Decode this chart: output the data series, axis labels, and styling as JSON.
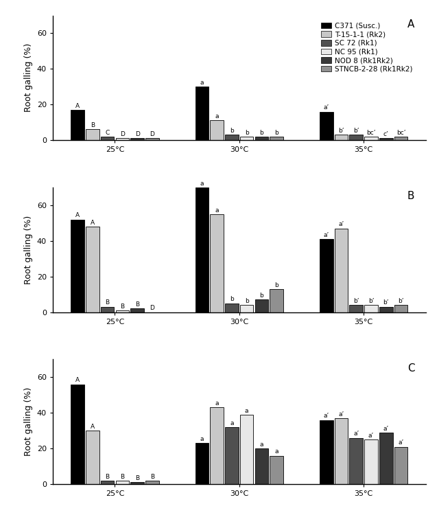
{
  "panels": [
    "A",
    "B",
    "C"
  ],
  "temperatures": [
    "25°C",
    "30°C",
    "35°C"
  ],
  "cultivars": [
    "C371 (Susc.)",
    "T-15-1-1 (Rk2)",
    "SC 72 (Rk1)",
    "NC 95 (Rk1)",
    "NOD 8 (Rk1Rk2)",
    "STNCB-2-28 (Rk1Rk2)"
  ],
  "colors": [
    "#000000",
    "#c8c8c8",
    "#505050",
    "#e8e8e8",
    "#383838",
    "#909090"
  ],
  "data": [
    [
      [
        17,
        6,
        2,
        1,
        1,
        1
      ],
      [
        30,
        11,
        3,
        2,
        2,
        2
      ],
      [
        16,
        3,
        3,
        2,
        1,
        2
      ]
    ],
    [
      [
        52,
        48,
        3,
        1,
        2,
        0
      ],
      [
        70,
        55,
        5,
        4,
        7,
        13
      ],
      [
        41,
        47,
        4,
        4,
        3,
        4
      ]
    ],
    [
      [
        56,
        30,
        2,
        2,
        1,
        2
      ],
      [
        23,
        43,
        32,
        39,
        20,
        16
      ],
      [
        36,
        37,
        26,
        25,
        29,
        21
      ]
    ]
  ],
  "labels": [
    [
      [
        "A",
        "B",
        "C",
        "D",
        "D",
        "D"
      ],
      [
        "a",
        "a",
        "b",
        "b",
        "b",
        "b"
      ],
      [
        "a’",
        "b’",
        "b’",
        "bc’",
        "c’",
        "bc’"
      ]
    ],
    [
      [
        "A",
        "A",
        "B",
        "B",
        "B",
        "D"
      ],
      [
        "a",
        "a",
        "b",
        "b",
        "b",
        "b"
      ],
      [
        "a’",
        "a’",
        "b’",
        "b’",
        "b’",
        "b’"
      ]
    ],
    [
      [
        "A",
        "A",
        "B",
        "B",
        "B",
        "B"
      ],
      [
        "a",
        "a",
        "a",
        "a",
        "a",
        "a"
      ],
      [
        "a’",
        "a’",
        "a’",
        "a’",
        "a’",
        "a’"
      ]
    ]
  ],
  "ylabel": "Root galling (%)",
  "ylim": [
    0,
    70
  ],
  "yticks": [
    0,
    20,
    40,
    60
  ],
  "background_color": "#ffffff",
  "edge_color": "#000000"
}
